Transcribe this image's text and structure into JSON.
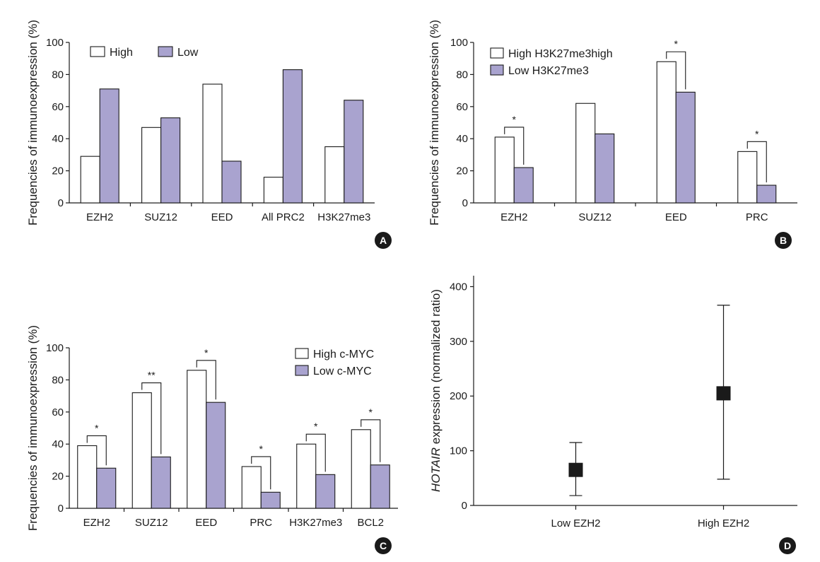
{
  "colors": {
    "high": "#ffffff",
    "low": "#a9a3cf",
    "ink": "#1a1a1a"
  },
  "chart_data": [
    {
      "panel": "A",
      "type": "bar",
      "ylabel": "Frequencies of immunoexpression (%)",
      "ylim": [
        0,
        100
      ],
      "yticks": [
        0,
        20,
        40,
        60,
        80,
        100
      ],
      "categories": [
        "EZH2",
        "SUZ12",
        "EED",
        "All PRC2",
        "H3K27me3"
      ],
      "series": [
        {
          "name": "High",
          "values": [
            29,
            47,
            74,
            16,
            35
          ]
        },
        {
          "name": "Low",
          "values": [
            71,
            53,
            26,
            83,
            64
          ]
        }
      ],
      "legend": "top-left",
      "significance": []
    },
    {
      "panel": "B",
      "type": "bar",
      "ylabel": "Frequencies of immunoexpression (%)",
      "ylim": [
        0,
        100
      ],
      "yticks": [
        0,
        20,
        40,
        60,
        80,
        100
      ],
      "categories": [
        "EZH2",
        "SUZ12",
        "EED",
        "PRC"
      ],
      "series": [
        {
          "name": "High H3K27me3high",
          "values": [
            41,
            62,
            88,
            32
          ]
        },
        {
          "name": "Low H3K27me3",
          "values": [
            22,
            43,
            69,
            11
          ]
        }
      ],
      "legend": "top-left",
      "significance": [
        {
          "category": 0,
          "label": "*"
        },
        {
          "category": 2,
          "label": "*"
        },
        {
          "category": 3,
          "label": "*"
        }
      ]
    },
    {
      "panel": "C",
      "type": "bar",
      "ylabel": "Frequencies of immunoexpression (%)",
      "ylim": [
        0,
        100
      ],
      "yticks": [
        0,
        20,
        40,
        60,
        80,
        100
      ],
      "categories": [
        "EZH2",
        "SUZ12",
        "EED",
        "PRC",
        "H3K27me3",
        "BCL2"
      ],
      "series": [
        {
          "name": "High c-MYC",
          "values": [
            39,
            72,
            86,
            26,
            40,
            49
          ]
        },
        {
          "name": "Low c-MYC",
          "values": [
            25,
            32,
            66,
            10,
            21,
            27
          ]
        }
      ],
      "legend": "top-right",
      "significance": [
        {
          "category": 0,
          "label": "*"
        },
        {
          "category": 1,
          "label": "**"
        },
        {
          "category": 2,
          "label": "*"
        },
        {
          "category": 3,
          "label": "*"
        },
        {
          "category": 4,
          "label": "*"
        },
        {
          "category": 5,
          "label": "*"
        }
      ]
    },
    {
      "panel": "D",
      "type": "scatter",
      "ylabel_italic": "HOTAIR",
      "ylabel_rest": " expression (normalized ratio)",
      "ylim": [
        0,
        420
      ],
      "yticks": [
        0,
        100,
        200,
        300,
        400
      ],
      "categories": [
        "Low EZH2",
        "High EZH2"
      ],
      "points": [
        {
          "category": "Low EZH2",
          "value": 65,
          "err_low": 18,
          "err_high": 115
        },
        {
          "category": "High EZH2",
          "value": 205,
          "err_low": 48,
          "err_high": 366
        }
      ]
    }
  ]
}
